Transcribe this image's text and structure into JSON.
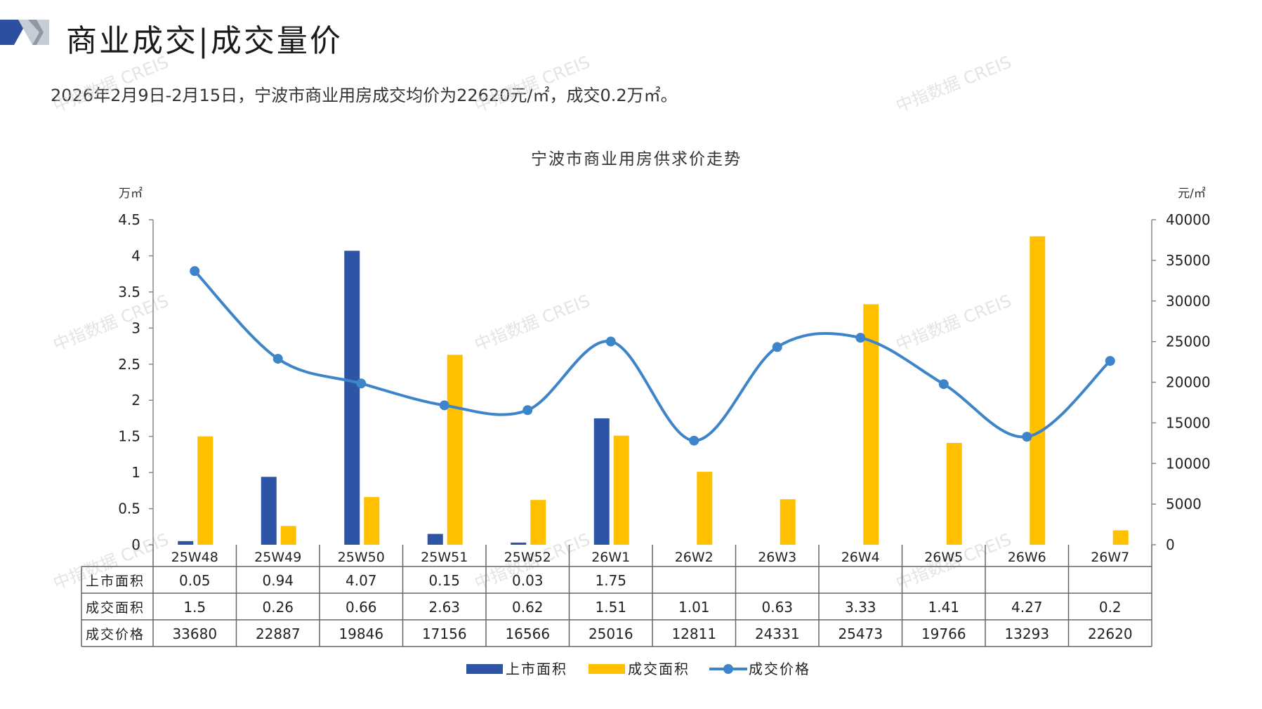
{
  "header": {
    "title": "商业成交|成交量价",
    "summary": "2026年2月9日-2月15日，宁波市商业用房成交均价为22620元/㎡，成交0.2万㎡。"
  },
  "watermark": "中指数据 CREIS",
  "colors": {
    "supply": "#2E55A5",
    "deal_area": "#FFC000",
    "price": "#3E84C8",
    "logo_dark": "#2E4FA0",
    "logo_light": "#C8CCD4"
  },
  "chart_data": {
    "type": "bar",
    "title": "宁波市商业用房供求价走势",
    "left_unit": "万㎡",
    "right_unit": "元/㎡",
    "categories": [
      "25W48",
      "25W49",
      "25W50",
      "25W51",
      "25W52",
      "26W1",
      "26W2",
      "26W3",
      "26W4",
      "26W5",
      "26W6",
      "26W7"
    ],
    "left_ticks": [
      "0",
      "0.5",
      "1",
      "1.5",
      "2",
      "2.5",
      "3",
      "3.5",
      "4",
      "4.5"
    ],
    "right_ticks": [
      "0",
      "5000",
      "10000",
      "15000",
      "20000",
      "25000",
      "30000",
      "35000",
      "40000"
    ],
    "ylim_left": [
      0,
      4.5
    ],
    "ylim_right": [
      0,
      40000
    ],
    "series": [
      {
        "name": "上市面积",
        "type": "bar",
        "axis": "left",
        "values": [
          0.05,
          0.94,
          4.07,
          0.15,
          0.03,
          1.75,
          null,
          null,
          null,
          null,
          null,
          null
        ],
        "labels": [
          "0.05",
          "0.94",
          "4.07",
          "0.15",
          "0.03",
          "1.75",
          "",
          "",
          "",
          "",
          "",
          ""
        ]
      },
      {
        "name": "成交面积",
        "type": "bar",
        "axis": "left",
        "values": [
          1.5,
          0.26,
          0.66,
          2.63,
          0.62,
          1.51,
          1.01,
          0.63,
          3.33,
          1.41,
          4.27,
          0.2
        ],
        "labels": [
          "1.5",
          "0.26",
          "0.66",
          "2.63",
          "0.62",
          "1.51",
          "1.01",
          "0.63",
          "3.33",
          "1.41",
          "4.27",
          "0.2"
        ]
      },
      {
        "name": "成交价格",
        "type": "line",
        "axis": "right",
        "values": [
          33680,
          22887,
          19846,
          17156,
          16566,
          25016,
          12811,
          24331,
          25473,
          19766,
          13293,
          22620
        ],
        "labels": [
          "33680",
          "22887",
          "19846",
          "17156",
          "16566",
          "25016",
          "12811",
          "24331",
          "25473",
          "19766",
          "13293",
          "22620"
        ]
      }
    ],
    "legend_position": "bottom",
    "grid": false
  }
}
